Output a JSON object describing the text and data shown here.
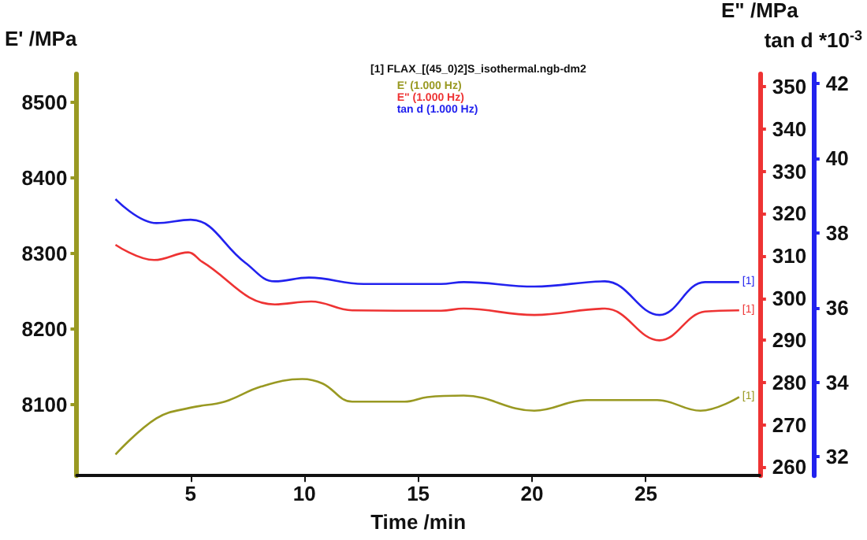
{
  "chart_data": {
    "type": "line",
    "xlabel": "Time /min",
    "ylabel": "E' /MPa",
    "y2label": "E\" /MPa",
    "y3label": "tan d *10$^{-3}$",
    "legend_title": "[1] FLAX_[(45_0)2]S_isothermal.ngb-dm2",
    "legend": "top",
    "grid": false,
    "marker": "none",
    "line_style": "solid",
    "xlim": [
      0,
      30
    ],
    "xticks": [
      5,
      10,
      15,
      20,
      25
    ],
    "ylim": [
      8006,
      8538
    ],
    "yticks": [
      8100,
      8200,
      8300,
      8400,
      8500
    ],
    "y2lim": [
      258,
      353
    ],
    "y2ticks": [
      260,
      270,
      280,
      290,
      300,
      310,
      320,
      330,
      340,
      350
    ],
    "y3lim": [
      31.5,
      42.25
    ],
    "y3ticks": [
      32,
      34,
      36,
      38,
      40,
      42
    ],
    "annotations": [
      "[1]",
      "[1]",
      "[1]"
    ],
    "series": [
      {
        "name": "E' (1.000 Hz)",
        "color": "#999922",
        "x": [
          1.7,
          3.5,
          5,
          6.5,
          8.1,
          9.9,
          10.8,
          12.1,
          14.4,
          15.4,
          17,
          20.1,
          22.4,
          25.5,
          27.4,
          29.1
        ],
        "values": [
          8034,
          8082,
          8096,
          8104,
          8124,
          8134,
          8128,
          8104,
          8104,
          8110,
          8112,
          8092,
          8106,
          8106,
          8092,
          8110
        ]
      },
      {
        "name": "E\" (1.000 Hz)",
        "color": "#ee3333",
        "axis": "y2",
        "x": [
          1.7,
          3.4,
          4.9,
          5.5,
          8.7,
          10.3,
          12.1,
          16,
          17,
          20.1,
          23.2,
          25.6,
          27.6,
          29.1
        ],
        "values": [
          312.6,
          309,
          310.8,
          308.6,
          298.5,
          299.2,
          297.1,
          297,
          297.5,
          296,
          297.5,
          290,
          296.8,
          297.1
        ]
      },
      {
        "name": "tan d (1.000 Hz)",
        "color": "#2222ee",
        "axis": "y3",
        "x": [
          1.7,
          3.5,
          5,
          7.4,
          8.7,
          10.2,
          12.6,
          16,
          17,
          20.1,
          23.2,
          25.6,
          27.6,
          29.1
        ],
        "values": [
          38.9,
          38.26,
          38.35,
          37.2,
          36.7,
          36.8,
          36.63,
          36.63,
          36.68,
          36.56,
          36.7,
          35.8,
          36.68,
          36.68
        ]
      }
    ]
  }
}
